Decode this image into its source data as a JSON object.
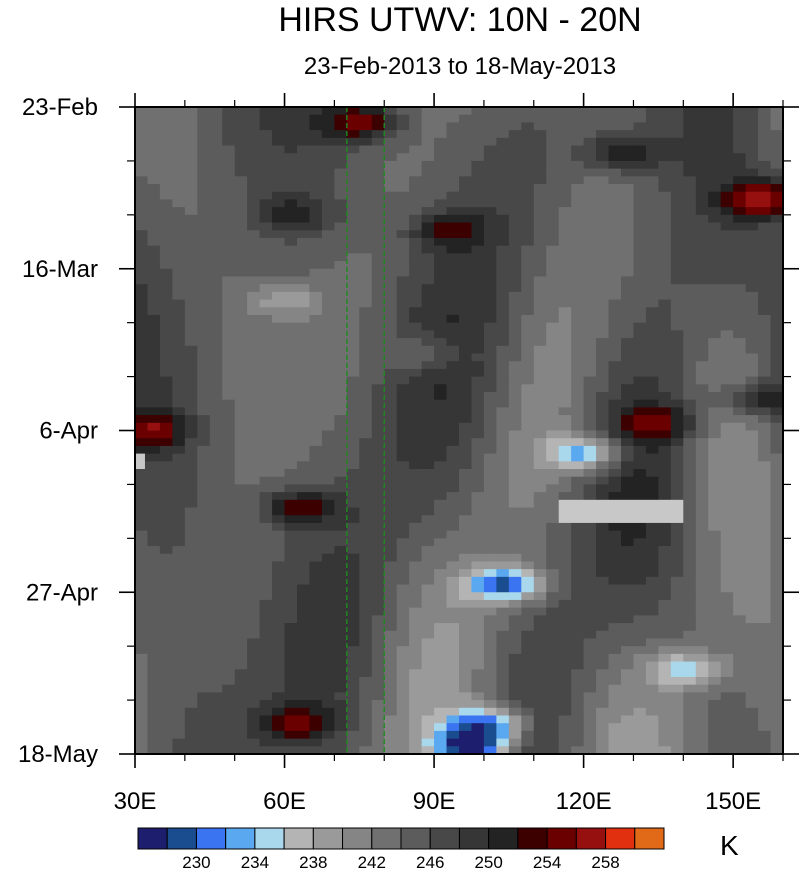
{
  "title": "HIRS UTWV: 10N - 20N",
  "subtitle": "23-Feb-2013 to 18-May-2013",
  "colorbar": {
    "units": "K",
    "tick_labels": [
      "230",
      "234",
      "238",
      "242",
      "246",
      "250",
      "254",
      "258"
    ],
    "colors": [
      "#1e1e6e",
      "#1a4d8f",
      "#3a74f0",
      "#5aa8f0",
      "#a9d8ec",
      "#b4b4b4",
      "#9a9a9a",
      "#858585",
      "#707070",
      "#5c5c5c",
      "#484848",
      "#363636",
      "#232323",
      "#3c0000",
      "#6a0000",
      "#961010",
      "#e03010",
      "#e06a18"
    ]
  },
  "chart_data": {
    "type": "heatmap",
    "title": "HIRS UTWV: 10N - 20N",
    "subtitle": "23-Feb-2013 to 18-May-2013",
    "x_ticks": [
      "30E",
      "60E",
      "90E",
      "120E",
      "150E"
    ],
    "x_tick_values": [
      30,
      60,
      90,
      120,
      150
    ],
    "xlim": [
      30,
      160
    ],
    "y_ticks": [
      "23-Feb",
      "16-Mar",
      "6-Apr",
      "27-Apr",
      "18-May"
    ],
    "y_tick_dates": [
      "2013-02-23",
      "2013-03-16",
      "2013-04-06",
      "2013-04-27",
      "2013-05-18"
    ],
    "ylim": [
      "2013-02-23",
      "2013-05-18"
    ],
    "y_direction": "time increases downward",
    "z_units": "K",
    "contour_levels": [
      228,
      230,
      232,
      234,
      236,
      238,
      240,
      242,
      244,
      246,
      248,
      250,
      252,
      254,
      256,
      258,
      260
    ],
    "reference_lines": [
      {
        "lon": 72.5,
        "style": "dashed",
        "color": "#1f8a1f"
      },
      {
        "lon": 80,
        "style": "dashed",
        "color": "#1f8a1f"
      }
    ],
    "missing_data": [
      {
        "lon": [
          30,
          32
        ],
        "dates": [
          "2013-04-09",
          "2013-04-11"
        ]
      },
      {
        "lon": [
          115,
          140
        ],
        "dates": [
          "2013-04-15",
          "2013-04-18"
        ]
      }
    ],
    "features": [
      {
        "name": "warm",
        "lon": 75,
        "date": "2013-02-25",
        "z": 258
      },
      {
        "name": "warm",
        "lon": 128,
        "date": "2013-03-01",
        "z": 256
      },
      {
        "name": "warm",
        "lon": 156,
        "date": "2013-03-07",
        "z": 260
      },
      {
        "name": "warm",
        "lon": 93,
        "date": "2013-03-11",
        "z": 254
      },
      {
        "name": "warm",
        "lon": 62,
        "date": "2013-03-09",
        "z": 253
      },
      {
        "name": "warm",
        "lon": 63,
        "date": "2013-04-16",
        "z": 256
      },
      {
        "name": "warm",
        "lon": 33,
        "date": "2013-04-06",
        "z": 256
      },
      {
        "name": "warm",
        "lon": 135,
        "date": "2013-04-05",
        "z": 255
      },
      {
        "name": "warm",
        "lon": 62,
        "date": "2013-05-14",
        "z": 255
      },
      {
        "name": "warm",
        "lon": 155,
        "date": "2013-04-02",
        "z": 255
      },
      {
        "name": "dry",
        "lon": 98,
        "date": "2013-05-17",
        "z": 230
      },
      {
        "name": "dry",
        "lon": 104,
        "date": "2013-04-26",
        "z": 233
      },
      {
        "name": "dry",
        "lon": 120,
        "date": "2013-04-09",
        "z": 235
      },
      {
        "name": "dry",
        "lon": 101,
        "date": "2013-05-14",
        "z": 234
      },
      {
        "name": "moist",
        "lon": 88,
        "date": "2013-03-27",
        "z": 242
      },
      {
        "name": "moist",
        "lon": 140,
        "date": "2013-05-07",
        "z": 238
      },
      {
        "name": "moist",
        "lon": 60,
        "date": "2013-03-20",
        "z": 242
      }
    ]
  }
}
